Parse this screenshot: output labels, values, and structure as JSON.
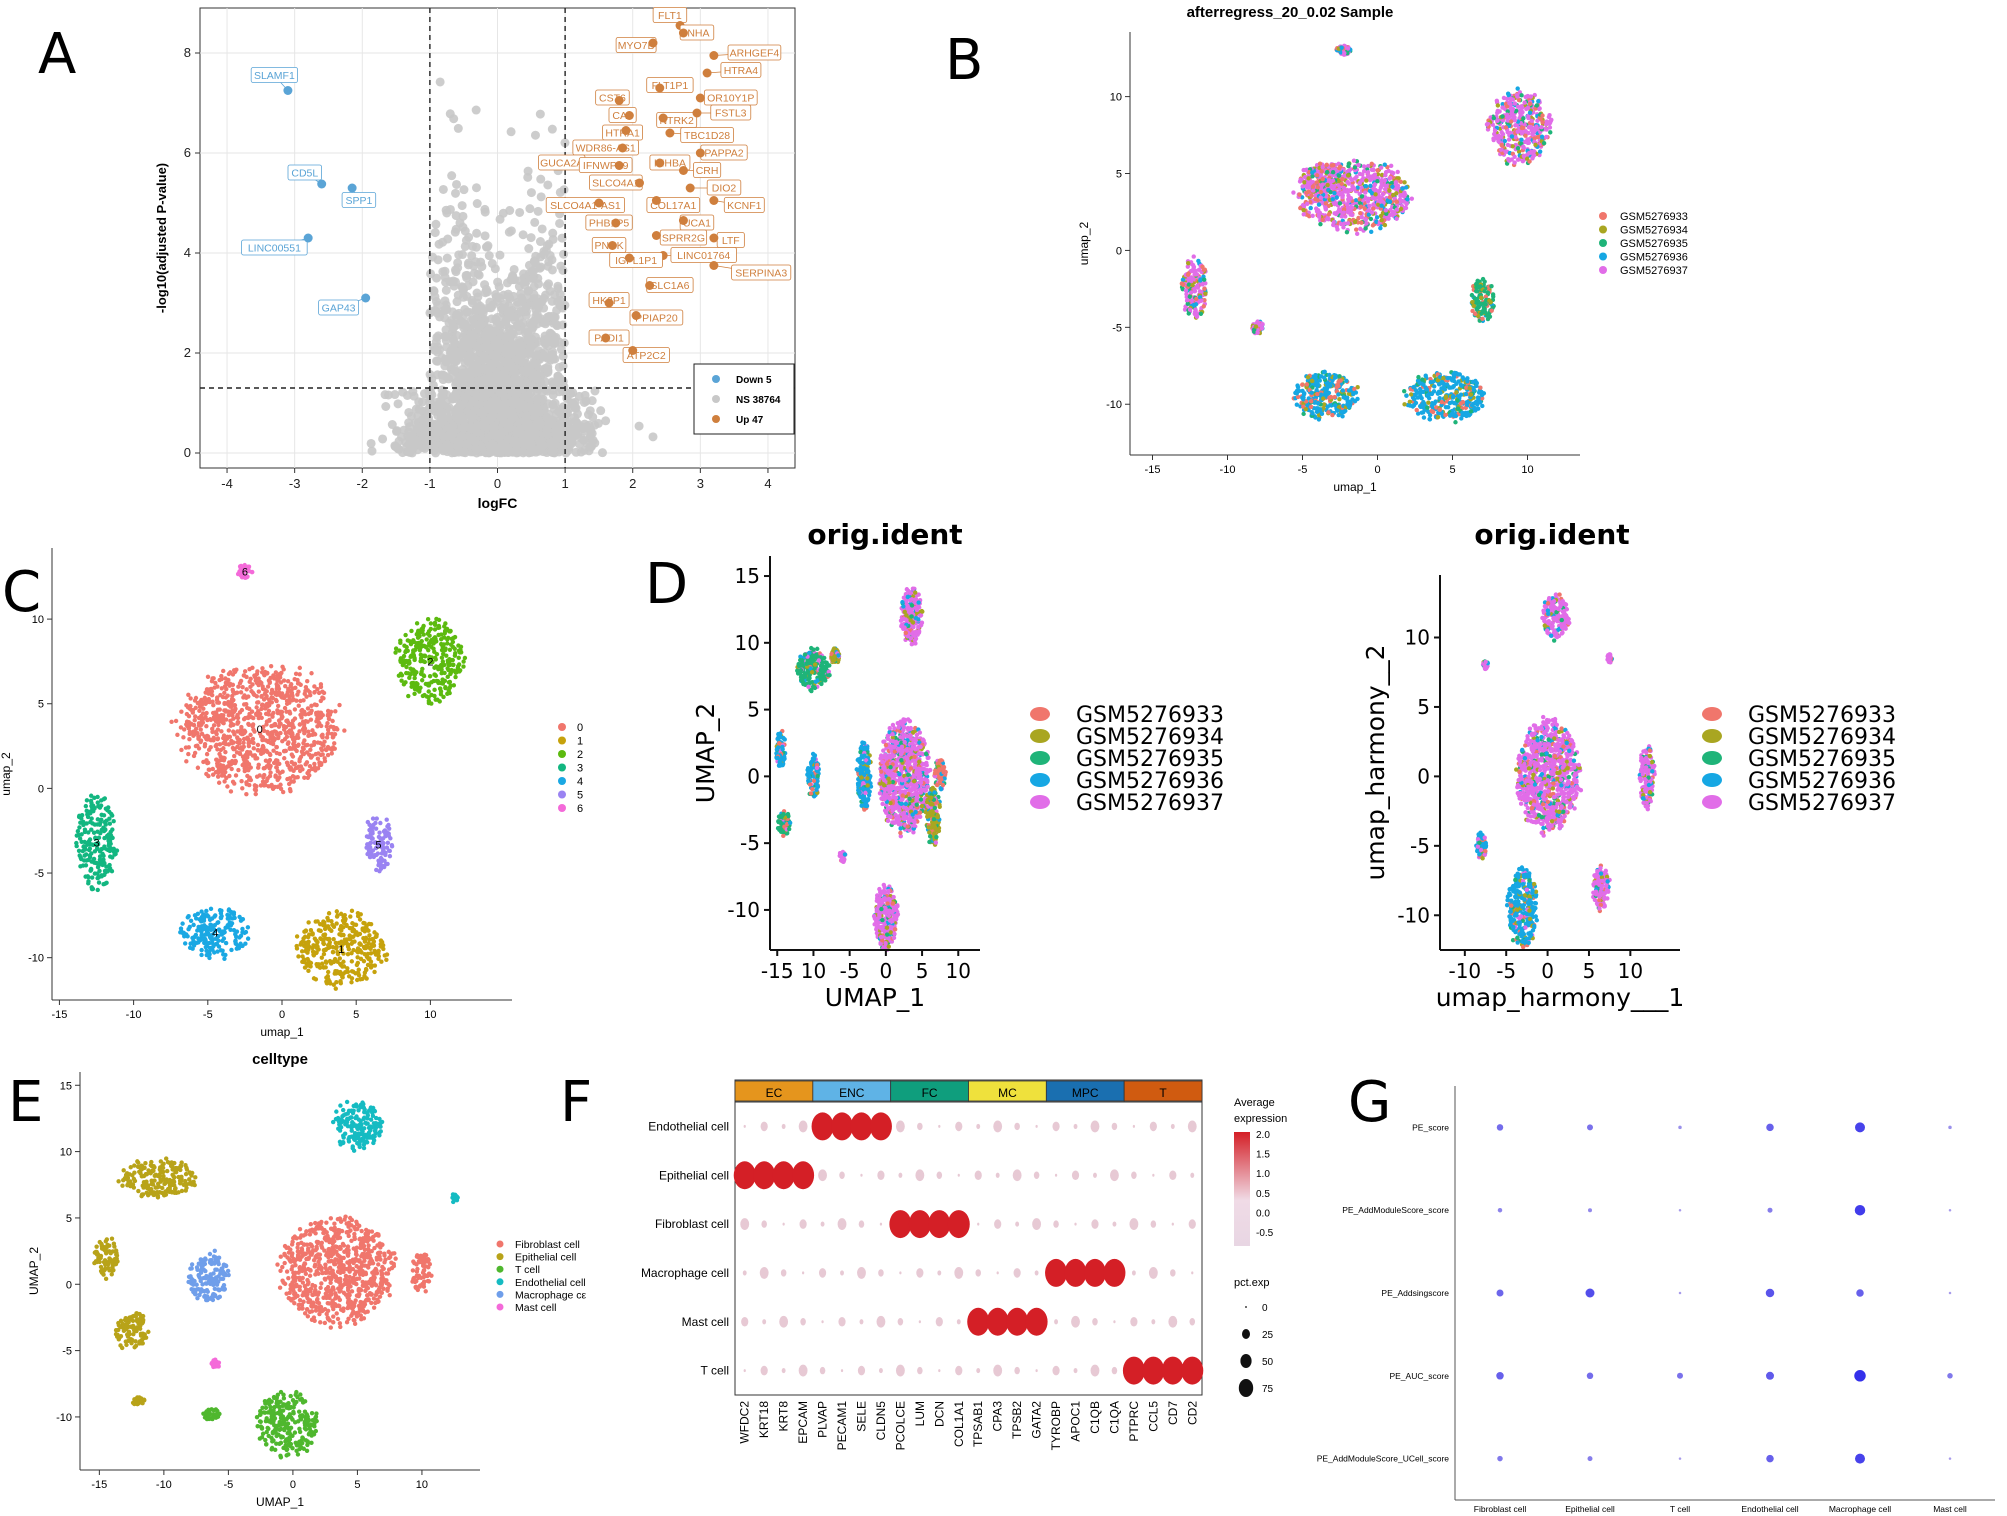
{
  "panel_letters": [
    "A",
    "B",
    "C",
    "D",
    "E",
    "F",
    "G"
  ],
  "colors": {
    "gsm": [
      "#f0766c",
      "#a9a621",
      "#1fb479",
      "#16a7e3",
      "#e16de8"
    ],
    "clusters": [
      "#f0766c",
      "#c6a20c",
      "#5cba0f",
      "#12b680",
      "#1aa8e3",
      "#9a83f2",
      "#f46ad9"
    ],
    "celltype": [
      "#f0766c",
      "#b8a319",
      "#4fb72e",
      "#15bbc2",
      "#6f9eea",
      "#f46ad9"
    ],
    "volcano_down": "#5aa4d6",
    "volcano_ns": "#c8c8c8",
    "volcano_up": "#cf7f3d",
    "f_blocks": [
      "#e5951d",
      "#5fb3e6",
      "#0f9e7d",
      "#efe13c",
      "#1a6fb0",
      "#d05b10"
    ],
    "dot_high": "#d41f26",
    "g_dot": "#4a3fd9"
  },
  "chart_data": [
    {
      "panel": "A",
      "type": "scatter",
      "title": "",
      "xlabel": "logFC",
      "ylabel": "-log10(adjusted P-value)",
      "xlim": [
        -4.4,
        4.4
      ],
      "ylim": [
        -0.3,
        8.9
      ],
      "xticks": [
        "-4",
        "-3",
        "-2",
        "-1",
        "0",
        "1",
        "2",
        "3",
        "4"
      ],
      "yticks": [
        "0",
        "2",
        "4",
        "6",
        "8"
      ],
      "thresholds": {
        "logFC": [
          -1,
          1
        ],
        "p": 1.3
      },
      "legend": [
        {
          "label": "Down 5",
          "count": 5
        },
        {
          "label": "NS 38764",
          "count": 38764
        },
        {
          "label": "Up 47",
          "count": 47
        }
      ],
      "down_genes": [
        {
          "gene": "SLAMF1",
          "logFC": -3.1,
          "p": 7.25,
          "lx": -3.3,
          "ly": 7.55
        },
        {
          "gene": "CD5L",
          "logFC": -2.6,
          "p": 5.38,
          "lx": -2.85,
          "ly": 5.6
        },
        {
          "gene": "SPP1",
          "logFC": -2.15,
          "p": 5.3,
          "lx": -2.05,
          "ly": 5.05
        },
        {
          "gene": "LINC00551",
          "logFC": -2.8,
          "p": 4.3,
          "lx": -3.3,
          "ly": 4.1
        },
        {
          "gene": "GAP43",
          "logFC": -1.95,
          "p": 3.1,
          "lx": -2.35,
          "ly": 2.9
        }
      ],
      "up_genes": [
        {
          "gene": "FLT1",
          "logFC": 2.7,
          "p": 8.55,
          "lx": 2.55,
          "ly": 8.75
        },
        {
          "gene": "INHA",
          "logFC": 2.75,
          "p": 8.4,
          "lx": 2.95,
          "ly": 8.4
        },
        {
          "gene": "MYO7B",
          "logFC": 2.3,
          "p": 8.2,
          "lx": 2.05,
          "ly": 8.15
        },
        {
          "gene": "ARHGEF4",
          "logFC": 3.2,
          "p": 7.95,
          "lx": 3.8,
          "ly": 8.0
        },
        {
          "gene": "HTRA4",
          "logFC": 3.1,
          "p": 7.6,
          "lx": 3.6,
          "ly": 7.65
        },
        {
          "gene": "FLT1P1",
          "logFC": 2.4,
          "p": 7.3,
          "lx": 2.55,
          "ly": 7.35
        },
        {
          "gene": "CST6",
          "logFC": 1.8,
          "p": 7.05,
          "lx": 1.7,
          "ly": 7.1
        },
        {
          "gene": "OR10Y1P",
          "logFC": 3.0,
          "p": 7.1,
          "lx": 3.45,
          "ly": 7.1
        },
        {
          "gene": "CA4",
          "logFC": 1.95,
          "p": 6.75,
          "lx": 1.85,
          "ly": 6.75
        },
        {
          "gene": "NTRK2",
          "logFC": 2.45,
          "p": 6.7,
          "lx": 2.65,
          "ly": 6.65
        },
        {
          "gene": "FSTL3",
          "logFC": 2.95,
          "p": 6.8,
          "lx": 3.45,
          "ly": 6.8
        },
        {
          "gene": "HTRA1",
          "logFC": 1.9,
          "p": 6.45,
          "lx": 1.85,
          "ly": 6.4
        },
        {
          "gene": "TBC1D28",
          "logFC": 2.55,
          "p": 6.4,
          "lx": 3.1,
          "ly": 6.35
        },
        {
          "gene": "WDR86-AS1",
          "logFC": 1.85,
          "p": 6.1,
          "lx": 1.6,
          "ly": 6.1
        },
        {
          "gene": "PAPPA2",
          "logFC": 3.0,
          "p": 6.0,
          "lx": 3.35,
          "ly": 6.0
        },
        {
          "gene": "GUCA2A",
          "logFC": 1.3,
          "p": 5.8,
          "lx": 0.95,
          "ly": 5.8
        },
        {
          "gene": "IFNWP19",
          "logFC": 1.8,
          "p": 5.75,
          "lx": 1.6,
          "ly": 5.75
        },
        {
          "gene": "INHBA",
          "logFC": 2.4,
          "p": 5.8,
          "lx": 2.55,
          "ly": 5.8
        },
        {
          "gene": "CRH",
          "logFC": 2.75,
          "p": 5.65,
          "lx": 3.1,
          "ly": 5.65
        },
        {
          "gene": "SLCO4A1",
          "logFC": 2.1,
          "p": 5.4,
          "lx": 1.75,
          "ly": 5.4
        },
        {
          "gene": "DIO2",
          "logFC": 2.85,
          "p": 5.3,
          "lx": 3.35,
          "ly": 5.3
        },
        {
          "gene": "COL17A1",
          "logFC": 2.35,
          "p": 5.05,
          "lx": 2.6,
          "ly": 4.95
        },
        {
          "gene": "KCNF1",
          "logFC": 3.2,
          "p": 5.05,
          "lx": 3.65,
          "ly": 4.95
        },
        {
          "gene": "SLCO4A1-AS1",
          "logFC": 1.5,
          "p": 5.0,
          "lx": 1.3,
          "ly": 4.95
        },
        {
          "gene": "UCA1",
          "logFC": 2.75,
          "p": 4.65,
          "lx": 2.95,
          "ly": 4.6
        },
        {
          "gene": "PHB1P5",
          "logFC": 1.75,
          "p": 4.6,
          "lx": 1.65,
          "ly": 4.6
        },
        {
          "gene": "SPRR2G",
          "logFC": 2.35,
          "p": 4.35,
          "lx": 2.75,
          "ly": 4.3
        },
        {
          "gene": "LTF",
          "logFC": 3.2,
          "p": 4.3,
          "lx": 3.45,
          "ly": 4.25
        },
        {
          "gene": "PNCK",
          "logFC": 1.7,
          "p": 4.15,
          "lx": 1.65,
          "ly": 4.15
        },
        {
          "gene": "LINC01764",
          "logFC": 2.45,
          "p": 3.95,
          "lx": 3.05,
          "ly": 3.95
        },
        {
          "gene": "IGFL1P1",
          "logFC": 1.95,
          "p": 3.9,
          "lx": 2.05,
          "ly": 3.85
        },
        {
          "gene": "SERPINA3",
          "logFC": 3.2,
          "p": 3.75,
          "lx": 3.9,
          "ly": 3.6
        },
        {
          "gene": "SLC1A6",
          "logFC": 2.25,
          "p": 3.35,
          "lx": 2.55,
          "ly": 3.35
        },
        {
          "gene": "HK2P1",
          "logFC": 1.65,
          "p": 3.0,
          "lx": 1.65,
          "ly": 3.05
        },
        {
          "gene": "PPIAP20",
          "logFC": 2.05,
          "p": 2.75,
          "lx": 2.35,
          "ly": 2.7
        },
        {
          "gene": "PADI1",
          "logFC": 1.6,
          "p": 2.3,
          "lx": 1.65,
          "ly": 2.3
        },
        {
          "gene": "ATP2C2",
          "logFC": 2.0,
          "p": 2.05,
          "lx": 2.2,
          "ly": 1.95
        }
      ]
    },
    {
      "panel": "B",
      "type": "scatter",
      "title": "afterregress_20_0.02 Sample",
      "xlabel": "umap_1",
      "ylabel": "umap_2",
      "xlim": [
        -16.5,
        13.5
      ],
      "ylim": [
        -13.3,
        14.2
      ],
      "xticks": [
        "-15",
        "-10",
        "-5",
        "0",
        "5",
        "10"
      ],
      "yticks": [
        "-10",
        "-5",
        "0",
        "5",
        "10"
      ],
      "legend": [
        "GSM5276933",
        "GSM5276934",
        "GSM5276935",
        "GSM5276936",
        "GSM5276937"
      ],
      "clusters": [
        {
          "cx": -1.5,
          "cy": 3.5,
          "rx": 3.8,
          "ry": 2.3,
          "color": 4
        },
        {
          "cx": -3.5,
          "cy": 4.5,
          "rx": 1.8,
          "ry": 1.2,
          "color": 4
        },
        {
          "cx": 9.5,
          "cy": 8.0,
          "rx": 2.1,
          "ry": 2.4,
          "color": 4
        },
        {
          "cx": -12.2,
          "cy": -2.5,
          "rx": 0.9,
          "ry": 2.0,
          "color": 4
        },
        {
          "cx": -3.5,
          "cy": -9.4,
          "rx": 2.2,
          "ry": 1.5,
          "color": 3
        },
        {
          "cx": 4.5,
          "cy": -9.5,
          "rx": 2.7,
          "ry": 1.6,
          "color": 3
        },
        {
          "cx": 7.0,
          "cy": -3.2,
          "rx": 0.8,
          "ry": 1.4,
          "color": 2
        },
        {
          "cx": -2.3,
          "cy": 13.0,
          "rx": 0.5,
          "ry": 0.3,
          "color": 4
        },
        {
          "cx": -8.0,
          "cy": -5.0,
          "rx": 0.4,
          "ry": 0.4,
          "color": 4
        }
      ]
    },
    {
      "panel": "C",
      "type": "scatter",
      "title": "",
      "xlabel": "umap_1",
      "ylabel": "umap_2",
      "xlim": [
        -15.5,
        15.5
      ],
      "ylim": [
        -12.5,
        14.2
      ],
      "xticks": [
        "-15",
        "-10",
        "-5",
        "0",
        "5",
        "10"
      ],
      "yticks": [
        "-10",
        "-5",
        "0",
        "5",
        "10"
      ],
      "legend": [
        "0",
        "1",
        "2",
        "3",
        "4",
        "5",
        "6"
      ],
      "clusters": [
        {
          "label": "0",
          "cx": -1.5,
          "cy": 3.5,
          "rx": 5.5,
          "ry": 3.8,
          "color": 0
        },
        {
          "label": "1",
          "cx": 4.0,
          "cy": -9.5,
          "rx": 3.0,
          "ry": 2.2,
          "color": 1
        },
        {
          "label": "2",
          "cx": 10.0,
          "cy": 7.5,
          "rx": 2.3,
          "ry": 2.5,
          "color": 2
        },
        {
          "label": "3",
          "cx": -12.5,
          "cy": -3.2,
          "rx": 1.4,
          "ry": 2.8,
          "color": 3
        },
        {
          "label": "4",
          "cx": -4.5,
          "cy": -8.5,
          "rx": 2.4,
          "ry": 1.5,
          "color": 4
        },
        {
          "label": "5",
          "cx": 6.5,
          "cy": -3.3,
          "rx": 0.9,
          "ry": 1.8,
          "color": 5
        },
        {
          "label": "6",
          "cx": -2.5,
          "cy": 12.8,
          "rx": 0.5,
          "ry": 0.4,
          "color": 6
        }
      ]
    },
    {
      "panel": "D-left",
      "type": "scatter",
      "title": "orig.ident",
      "xlabel": "UMAP_1",
      "ylabel": "UMAP_2",
      "xticks": [
        "-15",
        "10",
        "-5",
        "0",
        "5",
        "10"
      ],
      "yticks": [
        "-10",
        "-5",
        "0",
        "5",
        "10",
        "15"
      ],
      "legend": [
        "GSM5276933",
        "GSM5276934",
        "GSM5276935",
        "GSM5276936",
        "GSM5276937"
      ]
    },
    {
      "panel": "D-right",
      "type": "scatter",
      "title": "orig.ident",
      "xlabel": "umap_harmony___1",
      "ylabel": "umap_harmony__2",
      "xticks": [
        "-10",
        "-5",
        "0",
        "5",
        "10"
      ],
      "yticks": [
        "-10",
        "-5",
        "0",
        "5",
        "10"
      ],
      "legend": [
        "GSM5276933",
        "GSM5276934",
        "GSM5276935",
        "GSM5276936",
        "GSM5276937"
      ]
    },
    {
      "panel": "E",
      "type": "scatter",
      "title": "celltype",
      "xlabel": "UMAP_1",
      "ylabel": "UMAP_2",
      "xlim": [
        -16.5,
        14.5
      ],
      "ylim": [
        -14.0,
        16.0
      ],
      "xticks": [
        "-15",
        "-10",
        "-5",
        "0",
        "5",
        "10"
      ],
      "yticks": [
        "-10",
        "-5",
        "0",
        "5",
        "10",
        "15"
      ],
      "legend": [
        "Fibroblast cell",
        "Epithelial cell",
        "T cell",
        "Endothelial cell",
        "Macrophage cell",
        "Mast cell"
      ],
      "legend_visible_text": [
        "Fibroblast cell",
        "Epithelial cell",
        "T cell",
        "Endothelial cell",
        "Macrophage cε",
        "Mast cell"
      ]
    },
    {
      "panel": "F",
      "type": "scatter",
      "title": "",
      "groups": [
        "EC",
        "ENC",
        "FC",
        "MC",
        "MPC",
        "T"
      ],
      "genes": [
        "WFDC2",
        "KRT18",
        "KRT8",
        "EPCAM",
        "PLVAP",
        "PECAM1",
        "SELE",
        "CLDN5",
        "PCOLCE",
        "LUM",
        "DCN",
        "COL1A1",
        "TPSAB1",
        "CPA3",
        "TPSB2",
        "GATA2",
        "TYROBP",
        "APOC1",
        "C1QB",
        "C1QA",
        "PTPRC",
        "CCL5",
        "CD7",
        "CD2"
      ],
      "rows": [
        "Endothelial cell",
        "Epithelial cell",
        "Fibroblast cell",
        "Macrophage cell",
        "Mast cell",
        "T cell"
      ],
      "legend_expression_title": "Average expression",
      "legend_expression_ticks": [
        "2.0",
        "1.5",
        "1.0",
        "0.5",
        "0.0",
        "-0.5"
      ],
      "legend_pct_title": "pct.exp",
      "legend_pct_ticks": [
        "0",
        "25",
        "50",
        "75"
      ],
      "highlight": [
        [
          1,
          0
        ],
        [
          1,
          1
        ],
        [
          1,
          2
        ],
        [
          1,
          3
        ],
        [
          0,
          4
        ],
        [
          0,
          5
        ],
        [
          0,
          6
        ],
        [
          0,
          7
        ],
        [
          2,
          8
        ],
        [
          2,
          9
        ],
        [
          2,
          10
        ],
        [
          2,
          11
        ],
        [
          4,
          12
        ],
        [
          4,
          13
        ],
        [
          4,
          14
        ],
        [
          4,
          15
        ],
        [
          3,
          16
        ],
        [
          3,
          17
        ],
        [
          3,
          18
        ],
        [
          3,
          19
        ],
        [
          5,
          20
        ],
        [
          5,
          21
        ],
        [
          5,
          22
        ],
        [
          5,
          23
        ]
      ]
    },
    {
      "panel": "G",
      "type": "scatter",
      "title": "",
      "columns": [
        "Fibroblast cell",
        "Epithelial cell",
        "T cell",
        "Endothelial cell",
        "Macrophage cell",
        "Mast cell"
      ],
      "rows": [
        "PE_score",
        "PE_AddModuleScore_score",
        "PE_Addsingscore",
        "PE_AUC_score",
        "PE_AddModuleScore_UCell_score"
      ],
      "values": [
        [
          0.45,
          0.4,
          0.15,
          0.55,
          0.8,
          0.15
        ],
        [
          0.25,
          0.2,
          0.05,
          0.3,
          0.85,
          0.05
        ],
        [
          0.5,
          0.7,
          0.05,
          0.65,
          0.55,
          0.05
        ],
        [
          0.55,
          0.45,
          0.4,
          0.6,
          0.95,
          0.35
        ],
        [
          0.35,
          0.3,
          0.05,
          0.55,
          0.8,
          0.05
        ]
      ]
    }
  ]
}
